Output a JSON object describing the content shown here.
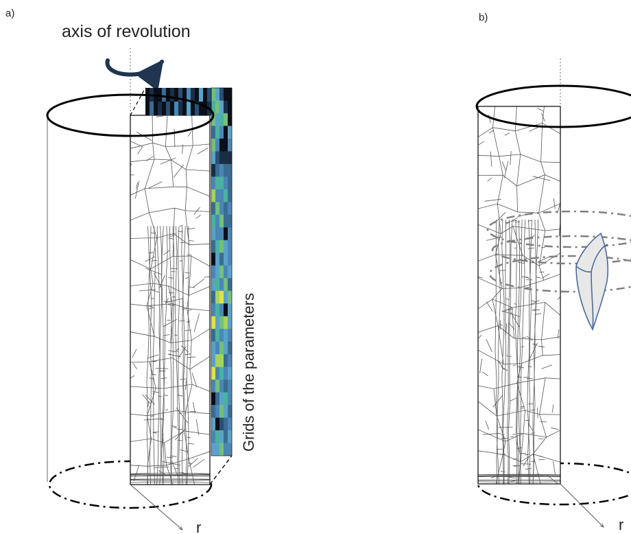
{
  "panel_a": {
    "label": "a)",
    "axis_title": "axis of revolution",
    "side_label": "Grids of the parameters",
    "radius_label": "r"
  },
  "panel_b": {
    "label": "b)",
    "radius_label": "r"
  },
  "colors": {
    "stroke": "#000000",
    "grain": "#555555",
    "dashed": "#7f7f7f",
    "arrow": "#1f3550",
    "wedge_fill": "#e8e8e8",
    "wedge_stroke": "#4a6a98",
    "grid_palette": [
      "#0b0f1a",
      "#1a2e45",
      "#2a4f72",
      "#3a6c92",
      "#4b86b4",
      "#5aa3c8",
      "#4ab3a0",
      "#72c07a",
      "#a7d45a",
      "#e2e245"
    ]
  },
  "parameter_grid": {
    "columns": 5,
    "rows": 29,
    "cells": [
      "75200111",
      "67510100",
      "75670107",
      "36405003",
      "74004301",
      "52111433",
      "13433434",
      "46643545",
      "84463543",
      "37434456",
      "64733465",
      "54404345",
      "36754854",
      "05354436",
      "45745537",
      "56473558",
      "38957347",
      "46405446",
      "95785044",
      "36454735",
      "54753477",
      "58834553",
      "94645365",
      "47434854",
      "03564573",
      "34753547",
      "50234945",
      "46535436",
      "55744635"
    ]
  }
}
